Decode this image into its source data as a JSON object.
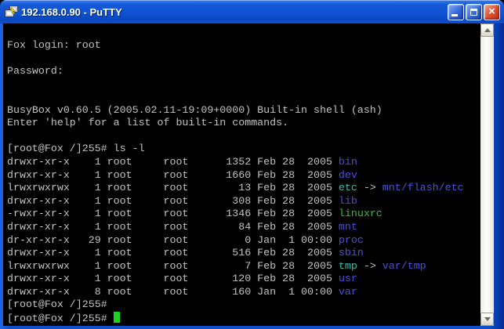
{
  "window": {
    "title": "192.168.0.90 - PuTTY"
  },
  "icons": {
    "app_icon": "putty-terminals-lightning",
    "close_glyph": "×"
  },
  "colors": {
    "background": "#000000",
    "foreground": "#C2C2C2",
    "directory_blue": "#4D4DE0",
    "symlink_cyan": "#2EBFAD",
    "executable_green": "#3ABA3A",
    "cursor_green": "#20D020",
    "titlebar_blue": "#0F52D2",
    "close_button_red": "#DD5436",
    "window_border_blue": "#0C50CE"
  },
  "terminal": {
    "lines": [
      {
        "segments": []
      },
      {
        "segments": [
          {
            "text": "Fox login: root",
            "color": "fg"
          }
        ]
      },
      {
        "segments": []
      },
      {
        "segments": [
          {
            "text": "Password:",
            "color": "fg"
          }
        ]
      },
      {
        "segments": []
      },
      {
        "segments": []
      },
      {
        "segments": [
          {
            "text": "BusyBox v0.60.5 (2005.02.11-19:09+0000) Built-in shell (ash)",
            "color": "fg"
          }
        ]
      },
      {
        "segments": [
          {
            "text": "Enter 'help' for a list of built-in commands.",
            "color": "fg"
          }
        ]
      },
      {
        "segments": []
      },
      {
        "segments": [
          {
            "text": "[root@Fox /]255# ls -l",
            "color": "fg"
          }
        ]
      },
      {
        "segments": [
          {
            "text": "drwxr-xr-x    1 root     root      1352 Feb 28  2005 ",
            "color": "fg"
          },
          {
            "text": "bin",
            "color": "blue"
          }
        ]
      },
      {
        "segments": [
          {
            "text": "drwxr-xr-x    1 root     root      1660 Feb 28  2005 ",
            "color": "fg"
          },
          {
            "text": "dev",
            "color": "blue"
          }
        ]
      },
      {
        "segments": [
          {
            "text": "lrwxrwxrwx    1 root     root        13 Feb 28  2005 ",
            "color": "fg"
          },
          {
            "text": "etc",
            "color": "cyan"
          },
          {
            "text": " -> ",
            "color": "fg"
          },
          {
            "text": "mnt/flash/etc",
            "color": "blue"
          }
        ]
      },
      {
        "segments": [
          {
            "text": "drwxr-xr-x    1 root     root       308 Feb 28  2005 ",
            "color": "fg"
          },
          {
            "text": "lib",
            "color": "blue"
          }
        ]
      },
      {
        "segments": [
          {
            "text": "-rwxr-xr-x    1 root     root      1346 Feb 28  2005 ",
            "color": "fg"
          },
          {
            "text": "linuxrc",
            "color": "green"
          }
        ]
      },
      {
        "segments": [
          {
            "text": "drwxr-xr-x    1 root     root        84 Feb 28  2005 ",
            "color": "fg"
          },
          {
            "text": "mnt",
            "color": "blue"
          }
        ]
      },
      {
        "segments": [
          {
            "text": "dr-xr-xr-x   29 root     root         0 Jan  1 00:00 ",
            "color": "fg"
          },
          {
            "text": "proc",
            "color": "blue"
          }
        ]
      },
      {
        "segments": [
          {
            "text": "drwxr-xr-x    1 root     root       516 Feb 28  2005 ",
            "color": "fg"
          },
          {
            "text": "sbin",
            "color": "blue"
          }
        ]
      },
      {
        "segments": [
          {
            "text": "lrwxrwxrwx    1 root     root         7 Feb 28  2005 ",
            "color": "fg"
          },
          {
            "text": "tmp",
            "color": "cyan"
          },
          {
            "text": " -> ",
            "color": "fg"
          },
          {
            "text": "var/tmp",
            "color": "blue"
          }
        ]
      },
      {
        "segments": [
          {
            "text": "drwxr-xr-x    1 root     root       120 Feb 28  2005 ",
            "color": "fg"
          },
          {
            "text": "usr",
            "color": "blue"
          }
        ]
      },
      {
        "segments": [
          {
            "text": "drwxr-xr-x    8 root     root       160 Jan  1 00:00 ",
            "color": "fg"
          },
          {
            "text": "var",
            "color": "blue"
          }
        ]
      },
      {
        "segments": [
          {
            "text": "[root@Fox /]255#",
            "color": "fg"
          }
        ]
      },
      {
        "segments": [
          {
            "text": "[root@Fox /]255# ",
            "color": "fg"
          }
        ],
        "cursor": true
      }
    ]
  }
}
